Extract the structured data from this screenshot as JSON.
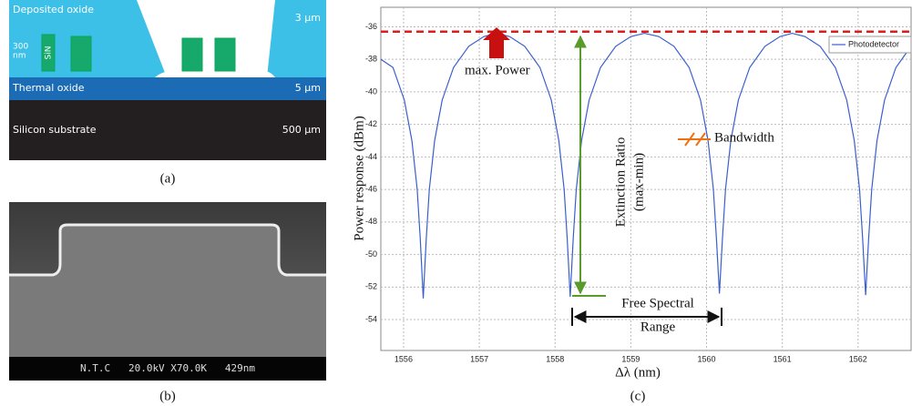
{
  "panel_a": {
    "label": "(a)",
    "texts": [
      "Deposited oxide",
      "3 µm",
      "300",
      "nm",
      "SiN",
      "Thermal oxide",
      "5 µm",
      "Silicon substrate",
      "500 µm"
    ]
  },
  "panel_b": {
    "label": "(b)",
    "caption": "N.T.C   20.0kV X70.0K   429nm"
  },
  "chart_data": {
    "type": "line",
    "label": "(c)",
    "x_label": "Δλ (nm)",
    "y_label": "Power response (dBm)",
    "annotations": [
      "max. Power",
      "Extinction Ratio",
      "(max-min)",
      "Bandwidth",
      "Free Spectral",
      "Range"
    ],
    "xlim": [
      1555.7,
      1562.7
    ],
    "ylim": [
      -55.9,
      -34.8
    ],
    "xticks": [
      1556,
      1557,
      1558,
      1559,
      1560,
      1561,
      1562
    ],
    "yticks": [
      -54,
      -52,
      -50,
      -48,
      -46,
      -44,
      -42,
      -40,
      -38,
      -36
    ],
    "grid": true,
    "legend": "top-right",
    "reference_line": {
      "value": -36.3,
      "color": "#d62020"
    },
    "x": [
      1555.7,
      1555.86,
      1556.01,
      1556.11,
      1556.18,
      1556.22,
      1556.26,
      1556.3,
      1556.34,
      1556.41,
      1556.51,
      1556.66,
      1556.86,
      1557.06,
      1557.23,
      1557.4,
      1557.6,
      1557.8,
      1557.95,
      1558.05,
      1558.12,
      1558.16,
      1558.2,
      1558.24,
      1558.28,
      1558.35,
      1558.45,
      1558.6,
      1558.8,
      1559.0,
      1559.18,
      1559.37,
      1559.57,
      1559.77,
      1559.92,
      1560.02,
      1560.09,
      1560.13,
      1560.17,
      1560.21,
      1560.25,
      1560.32,
      1560.42,
      1560.57,
      1560.77,
      1560.97,
      1561.13,
      1561.3,
      1561.5,
      1561.7,
      1561.85,
      1561.95,
      1562.02,
      1562.06,
      1562.1,
      1562.14,
      1562.18,
      1562.25,
      1562.35,
      1562.5,
      1562.7
    ],
    "series": [
      {
        "name": "Photodetector",
        "color": "#3a5fcd",
        "values": [
          -38,
          -38.5,
          -40.5,
          -43,
          -46,
          -49,
          -52.7,
          -49,
          -46,
          -43,
          -40.5,
          -38.5,
          -37.2,
          -36.6,
          -36.4,
          -36.6,
          -37.2,
          -38.5,
          -40.5,
          -43,
          -46,
          -49,
          -52.6,
          -49,
          -46,
          -43,
          -40.5,
          -38.5,
          -37.2,
          -36.6,
          -36.4,
          -36.6,
          -37.2,
          -38.5,
          -40.5,
          -43,
          -46,
          -49,
          -52.4,
          -49,
          -46,
          -43,
          -40.5,
          -38.5,
          -37.2,
          -36.6,
          -36.4,
          -36.6,
          -37.2,
          -38.5,
          -40.5,
          -43,
          -46,
          -49,
          -52.5,
          -49,
          -46,
          -43,
          -40.5,
          -38.5,
          -37.2
        ]
      }
    ]
  }
}
